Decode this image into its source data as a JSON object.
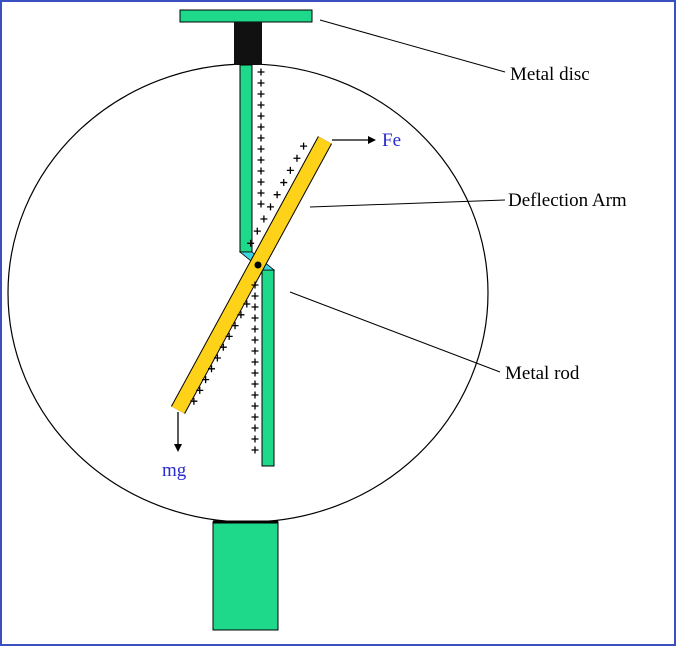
{
  "labels": {
    "metal_disc": "Metal disc",
    "deflection_arm": "Deflection Arm",
    "metal_rod": "Metal rod",
    "force_e": "Fe",
    "force_g": "mg"
  }
}
